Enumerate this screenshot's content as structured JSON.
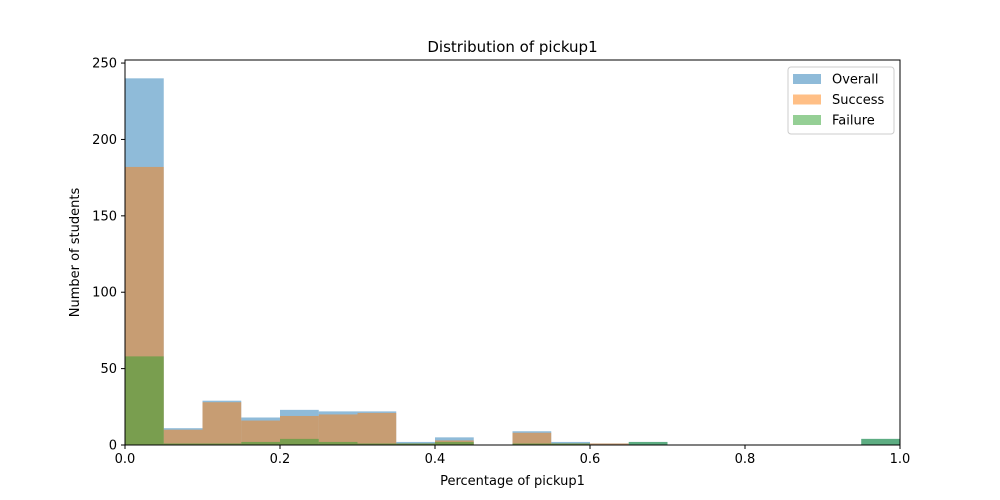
{
  "chart_data": {
    "type": "bar",
    "title": "Distribution of pickup1",
    "xlabel": "Percentage of pickup1",
    "ylabel": "Number of students",
    "xlim": [
      0,
      1.0
    ],
    "ylim": [
      0,
      252
    ],
    "xticks": [
      0.0,
      0.2,
      0.4,
      0.6,
      0.8,
      1.0
    ],
    "xtick_labels": [
      "0.0",
      "0.2",
      "0.4",
      "0.6",
      "0.8",
      "1.0"
    ],
    "yticks": [
      0,
      50,
      100,
      150,
      200,
      250
    ],
    "ytick_labels": [
      "0",
      "50",
      "100",
      "150",
      "200",
      "250"
    ],
    "bin_width": 0.05,
    "bin_starts": [
      0.0,
      0.05,
      0.1,
      0.15,
      0.2,
      0.25,
      0.3,
      0.35,
      0.4,
      0.45,
      0.5,
      0.55,
      0.6,
      0.65,
      0.7,
      0.75,
      0.8,
      0.85,
      0.9,
      0.95
    ],
    "legend_position": "top-right",
    "grid": false,
    "series": [
      {
        "name": "Overall",
        "color": "#1f77b4",
        "values": [
          240,
          11,
          29,
          18,
          23,
          22,
          22,
          2,
          5,
          0,
          9,
          2,
          1,
          2,
          0,
          0,
          0,
          0,
          0,
          4
        ]
      },
      {
        "name": "Success",
        "color": "#ff7f0e",
        "values": [
          182,
          10,
          28,
          16,
          19,
          20,
          21,
          1,
          3,
          0,
          8,
          1,
          1,
          0,
          0,
          0,
          0,
          0,
          0,
          0
        ]
      },
      {
        "name": "Failure",
        "color": "#2ca02c",
        "values": [
          58,
          1,
          1,
          2,
          4,
          2,
          1,
          1,
          2,
          0,
          1,
          1,
          0,
          2,
          0,
          0,
          0,
          0,
          0,
          4
        ]
      }
    ]
  }
}
